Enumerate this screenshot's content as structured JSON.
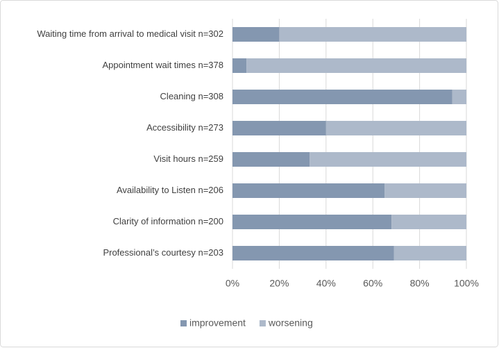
{
  "chart_data": {
    "type": "stacked_bar_horizontal",
    "categories": [
      "Waiting time from arrival to medical visit n=302",
      "Appointment wait times  n=378",
      "Cleaning  n=308",
      "Accessibility  n=273",
      "Visit hours n=259",
      "Availability to Listen n=206",
      "Clarity of information n=200",
      "Professional’s courtesy n=203"
    ],
    "series": [
      {
        "name": "improvement",
        "color": "#8497b0",
        "values": [
          20,
          6,
          94,
          40,
          33,
          65,
          68,
          69
        ]
      },
      {
        "name": "worsening",
        "color": "#adb9ca",
        "values": [
          80,
          94,
          6,
          60,
          67,
          35,
          32,
          31
        ]
      }
    ],
    "xlim": [
      0,
      100
    ],
    "xticks": [
      {
        "value": 0,
        "label": "0%"
      },
      {
        "value": 20,
        "label": "20%"
      },
      {
        "value": 40,
        "label": "40%"
      },
      {
        "value": 60,
        "label": "60%"
      },
      {
        "value": 80,
        "label": "80%"
      },
      {
        "value": 100,
        "label": "100%"
      }
    ],
    "grid": true,
    "legend": "bottom"
  }
}
